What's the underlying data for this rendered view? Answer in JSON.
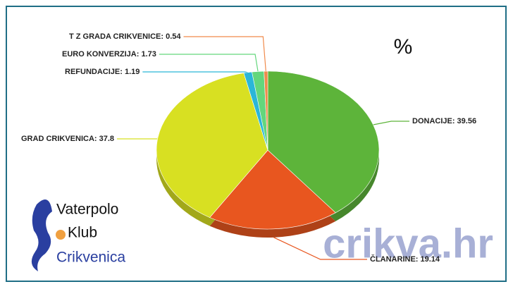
{
  "chart_data": {
    "type": "pie",
    "title": "%",
    "values": [
      39.56,
      19.14,
      37.8,
      1.19,
      1.73,
      0.54
    ],
    "value_labels": [
      "DONACIJE: 39.56",
      "ČLANARINE: 19.14",
      "GRAD CRIKVENICA: 37.8",
      "REFUNDACIJE: 1.19",
      "EURO KONVERZIJA: 1.73",
      "T Z  GRADA CRIKVENICE: 0.54"
    ],
    "colors": [
      "#5db43a",
      "#e8561f",
      "#d8e022",
      "#2bb6d8",
      "#63d67c",
      "#f08a4b"
    ]
  },
  "logo": [
    "Vaterpolo",
    "Klub",
    "Crikvenica"
  ],
  "watermark": "crikva.hr"
}
